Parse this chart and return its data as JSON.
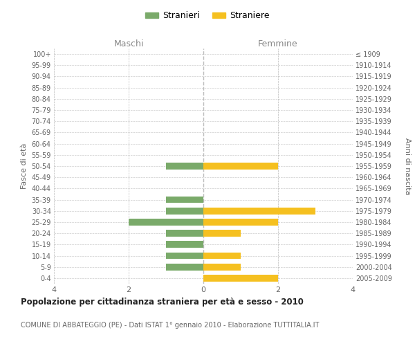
{
  "age_groups": [
    "100+",
    "95-99",
    "90-94",
    "85-89",
    "80-84",
    "75-79",
    "70-74",
    "65-69",
    "60-64",
    "55-59",
    "50-54",
    "45-49",
    "40-44",
    "35-39",
    "30-34",
    "25-29",
    "20-24",
    "15-19",
    "10-14",
    "5-9",
    "0-4"
  ],
  "birth_years": [
    "≤ 1909",
    "1910-1914",
    "1915-1919",
    "1920-1924",
    "1925-1929",
    "1930-1934",
    "1935-1939",
    "1940-1944",
    "1945-1949",
    "1950-1954",
    "1955-1959",
    "1960-1964",
    "1965-1969",
    "1970-1974",
    "1975-1979",
    "1980-1984",
    "1985-1989",
    "1990-1994",
    "1995-1999",
    "2000-2004",
    "2005-2009"
  ],
  "maschi": [
    0,
    0,
    0,
    0,
    0,
    0,
    0,
    0,
    0,
    0,
    1,
    0,
    0,
    1,
    1,
    2,
    1,
    1,
    1,
    1,
    0
  ],
  "femmine": [
    0,
    0,
    0,
    0,
    0,
    0,
    0,
    0,
    0,
    0,
    2,
    0,
    0,
    0,
    3,
    2,
    1,
    0,
    1,
    1,
    2
  ],
  "color_maschi": "#7aaa6a",
  "color_femmine_bar": "#f5c020",
  "title": "Popolazione per cittadinanza straniera per età e sesso - 2010",
  "subtitle": "COMUNE DI ABBATEGGIO (PE) - Dati ISTAT 1° gennaio 2010 - Elaborazione TUTTITALIA.IT",
  "ylabel_left": "Fasce di età",
  "ylabel_right": "Anni di nascita",
  "xlabel_maschi": "Maschi",
  "xlabel_femmine": "Femmine",
  "legend_maschi": "Stranieri",
  "legend_femmine": "Straniere",
  "xlim": 4,
  "background_color": "#ffffff",
  "grid_color": "#cccccc",
  "grid_color_dashed": "#bbbbbb"
}
